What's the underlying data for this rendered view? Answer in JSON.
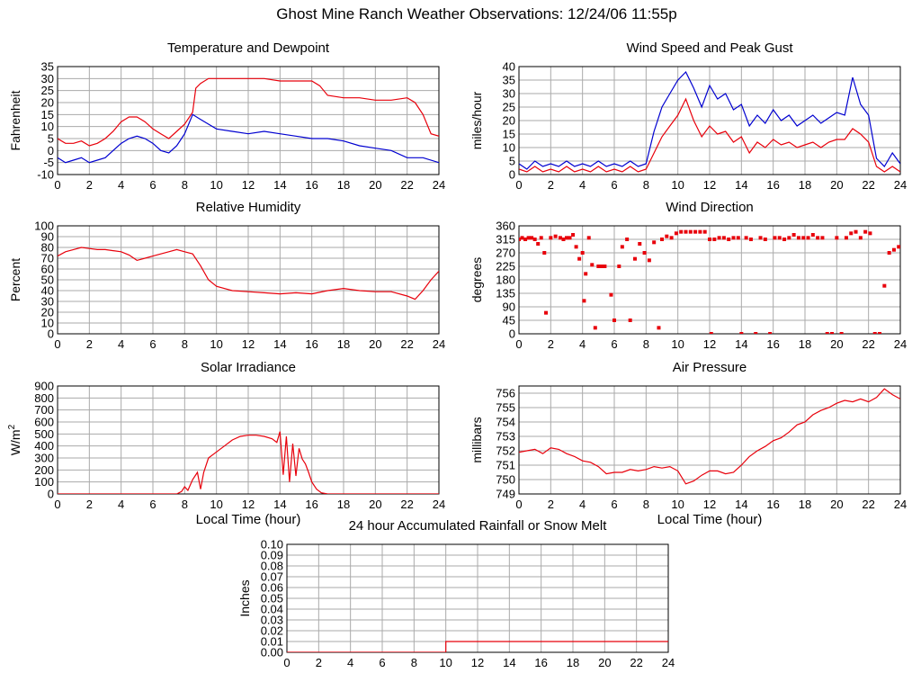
{
  "title": "Ghost Mine Ranch Weather Observations: 12/24/06 11:55p",
  "colors": {
    "series_red": "#e8000b",
    "series_blue": "#0000d0",
    "grid": "#aaaaaa",
    "major_grid": "#555555"
  },
  "chart_data": [
    {
      "id": "temp",
      "type": "line",
      "title": "Temperature and Dewpoint",
      "xlabel": "",
      "ylabel": "Fahrenheit",
      "xlim": [
        0,
        24
      ],
      "ylim": [
        -10,
        35
      ],
      "yticks": [
        -10,
        -5,
        0,
        5,
        10,
        15,
        20,
        25,
        30,
        35
      ],
      "xticks": [
        0,
        2,
        4,
        6,
        8,
        10,
        12,
        14,
        16,
        18,
        20,
        22,
        24
      ],
      "series": [
        {
          "color": "#e8000b",
          "x": [
            0,
            0.5,
            1,
            1.5,
            2,
            2.5,
            3,
            3.5,
            4,
            4.5,
            5,
            5.5,
            6,
            6.5,
            7,
            7.5,
            8,
            8.5,
            8.7,
            9,
            9.5,
            10,
            11,
            12,
            13,
            14,
            15,
            16,
            16.5,
            17,
            18,
            19,
            20,
            21,
            22,
            22.5,
            23,
            23.5,
            24
          ],
          "y": [
            5,
            3,
            3,
            4,
            2,
            3,
            5,
            8,
            12,
            14,
            14,
            12,
            9,
            7,
            5,
            8,
            11,
            16,
            26,
            28,
            30,
            30,
            30,
            30,
            30,
            29,
            29,
            29,
            27,
            23,
            22,
            22,
            21,
            21,
            22,
            20,
            15,
            7,
            6
          ]
        },
        {
          "color": "#0000d0",
          "x": [
            0,
            0.5,
            1,
            1.5,
            2,
            2.5,
            3,
            3.5,
            4,
            4.5,
            5,
            5.5,
            6,
            6.5,
            7,
            7.5,
            8,
            8.5,
            9,
            9.5,
            10,
            11,
            12,
            13,
            14,
            15,
            16,
            17,
            18,
            19,
            20,
            21,
            22,
            23,
            24
          ],
          "y": [
            -3,
            -5,
            -4,
            -3,
            -5,
            -4,
            -3,
            0,
            3,
            5,
            6,
            5,
            3,
            0,
            -1,
            2,
            7,
            15,
            13,
            11,
            9,
            8,
            7,
            8,
            7,
            6,
            5,
            5,
            4,
            2,
            1,
            0,
            -3,
            -3,
            -5
          ]
        }
      ]
    },
    {
      "id": "wind",
      "type": "line",
      "title": "Wind Speed and Peak Gust",
      "xlabel": "",
      "ylabel": "miles/hour",
      "xlim": [
        0,
        24
      ],
      "ylim": [
        0,
        40
      ],
      "yticks": [
        0,
        5,
        10,
        15,
        20,
        25,
        30,
        35,
        40
      ],
      "xticks": [
        0,
        2,
        4,
        6,
        8,
        10,
        12,
        14,
        16,
        18,
        20,
        22,
        24
      ],
      "series": [
        {
          "color": "#0000d0",
          "x": [
            0,
            0.5,
            1,
            1.5,
            2,
            2.5,
            3,
            3.5,
            4,
            4.5,
            5,
            5.5,
            6,
            6.5,
            7,
            7.5,
            8,
            8.5,
            9,
            9.5,
            10,
            10.5,
            11,
            11.5,
            12,
            12.5,
            13,
            13.5,
            14,
            14.5,
            15,
            15.5,
            16,
            16.5,
            17,
            17.5,
            18,
            18.5,
            19,
            19.5,
            20,
            20.5,
            21,
            21.5,
            22,
            22.5,
            23,
            23.5,
            24
          ],
          "y": [
            4,
            2,
            5,
            3,
            4,
            3,
            5,
            3,
            4,
            3,
            5,
            3,
            4,
            3,
            5,
            3,
            4,
            16,
            25,
            30,
            35,
            38,
            32,
            25,
            33,
            28,
            30,
            24,
            26,
            18,
            22,
            19,
            24,
            20,
            22,
            18,
            20,
            22,
            19,
            21,
            23,
            22,
            36,
            26,
            22,
            6,
            3,
            8,
            4
          ]
        },
        {
          "color": "#e8000b",
          "x": [
            0,
            0.5,
            1,
            1.5,
            2,
            2.5,
            3,
            3.5,
            4,
            4.5,
            5,
            5.5,
            6,
            6.5,
            7,
            7.5,
            8,
            8.5,
            9,
            9.5,
            10,
            10.5,
            11,
            11.5,
            12,
            12.5,
            13,
            13.5,
            14,
            14.5,
            15,
            15.5,
            16,
            16.5,
            17,
            17.5,
            18,
            18.5,
            19,
            19.5,
            20,
            20.5,
            21,
            21.5,
            22,
            22.5,
            23,
            23.5,
            24
          ],
          "y": [
            2,
            1,
            3,
            1,
            2,
            1,
            3,
            1,
            2,
            1,
            3,
            1,
            2,
            1,
            3,
            1,
            2,
            8,
            14,
            18,
            22,
            28,
            20,
            14,
            18,
            15,
            16,
            12,
            14,
            8,
            12,
            10,
            13,
            11,
            12,
            10,
            11,
            12,
            10,
            12,
            13,
            13,
            17,
            15,
            12,
            3,
            1,
            3,
            1
          ]
        }
      ]
    },
    {
      "id": "humidity",
      "type": "line",
      "title": "Relative Humidity",
      "xlabel": "",
      "ylabel": "Percent",
      "xlim": [
        0,
        24
      ],
      "ylim": [
        0,
        100
      ],
      "yticks": [
        0,
        10,
        20,
        30,
        40,
        50,
        60,
        70,
        80,
        90,
        100
      ],
      "xticks": [
        0,
        2,
        4,
        6,
        8,
        10,
        12,
        14,
        16,
        18,
        20,
        22,
        24
      ],
      "series": [
        {
          "color": "#e8000b",
          "x": [
            0,
            0.5,
            1,
            1.5,
            2,
            2.5,
            3,
            3.5,
            4,
            4.5,
            5,
            5.5,
            6,
            6.5,
            7,
            7.5,
            8,
            8.5,
            9,
            9.5,
            10,
            11,
            12,
            13,
            14,
            15,
            16,
            17,
            18,
            19,
            20,
            21,
            22,
            22.5,
            23,
            23.5,
            24
          ],
          "y": [
            72,
            76,
            78,
            80,
            79,
            78,
            78,
            77,
            76,
            73,
            68,
            70,
            72,
            74,
            76,
            78,
            76,
            74,
            63,
            50,
            44,
            40,
            39,
            38,
            37,
            38,
            37,
            40,
            42,
            40,
            39,
            39,
            35,
            32,
            40,
            50,
            58
          ]
        }
      ]
    },
    {
      "id": "direction",
      "type": "scatter",
      "title": "Wind Direction",
      "xlabel": "",
      "ylabel": "degrees",
      "xlim": [
        0,
        24
      ],
      "ylim": [
        0,
        360
      ],
      "yticks": [
        0,
        45,
        90,
        135,
        180,
        225,
        270,
        315,
        360
      ],
      "xticks": [
        0,
        2,
        4,
        6,
        8,
        10,
        12,
        14,
        16,
        18,
        20,
        22,
        24
      ],
      "series": [
        {
          "color": "#e8000b",
          "x": [
            0.0,
            0.2,
            0.4,
            0.6,
            0.8,
            1.0,
            1.2,
            1.4,
            1.6,
            1.7,
            2.0,
            2.3,
            2.6,
            2.8,
            3.0,
            3.2,
            3.4,
            3.6,
            3.8,
            4.0,
            4.1,
            4.2,
            4.4,
            4.6,
            4.8,
            5.0,
            5.2,
            5.4,
            5.8,
            6.0,
            6.3,
            6.5,
            6.8,
            7.0,
            7.3,
            7.6,
            7.9,
            8.2,
            8.5,
            8.8,
            9.0,
            9.3,
            9.6,
            9.9,
            10.2,
            10.5,
            10.8,
            11.1,
            11.4,
            11.7,
            12.0,
            12.1,
            12.3,
            12.6,
            12.9,
            13.2,
            13.5,
            13.8,
            14.0,
            14.3,
            14.6,
            14.9,
            15.2,
            15.5,
            15.8,
            16.1,
            16.4,
            16.7,
            17.0,
            17.3,
            17.6,
            17.9,
            18.2,
            18.5,
            18.8,
            19.1,
            19.4,
            19.7,
            20.0,
            20.3,
            20.6,
            20.9,
            21.2,
            21.5,
            21.8,
            22.1,
            22.4,
            22.7,
            23.0,
            23.3,
            23.6,
            23.9
          ],
          "y": [
            315,
            320,
            315,
            320,
            320,
            315,
            300,
            320,
            270,
            70,
            320,
            325,
            320,
            315,
            320,
            320,
            330,
            290,
            250,
            270,
            110,
            200,
            320,
            230,
            20,
            225,
            225,
            225,
            130,
            45,
            225,
            290,
            315,
            45,
            250,
            300,
            270,
            245,
            305,
            20,
            315,
            325,
            320,
            335,
            340,
            340,
            340,
            340,
            340,
            340,
            315,
            0,
            315,
            320,
            320,
            315,
            320,
            320,
            0,
            320,
            315,
            0,
            320,
            315,
            0,
            320,
            320,
            315,
            320,
            330,
            320,
            320,
            320,
            330,
            320,
            320,
            0,
            0,
            320,
            0,
            320,
            335,
            340,
            320,
            340,
            335,
            0,
            0,
            160,
            270,
            280,
            290
          ]
        }
      ]
    },
    {
      "id": "solar",
      "type": "line",
      "title": "Solar Irradiance",
      "xlabel": "Local Time (hour)",
      "ylabel": "W/m",
      "ylabel_sup": "2",
      "xlim": [
        0,
        24
      ],
      "ylim": [
        0,
        900
      ],
      "yticks": [
        0,
        100,
        200,
        300,
        400,
        500,
        600,
        700,
        800,
        900
      ],
      "xticks": [
        0,
        2,
        4,
        6,
        8,
        10,
        12,
        14,
        16,
        18,
        20,
        22,
        24
      ],
      "series": [
        {
          "color": "#e8000b",
          "x": [
            0,
            7.5,
            7.8,
            8.0,
            8.2,
            8.5,
            8.8,
            9.0,
            9.2,
            9.5,
            10.0,
            10.5,
            11.0,
            11.5,
            12.0,
            12.5,
            13.0,
            13.5,
            13.8,
            14.0,
            14.2,
            14.4,
            14.6,
            14.8,
            15.0,
            15.2,
            15.4,
            15.6,
            15.8,
            16.0,
            16.3,
            16.6,
            17.0,
            24
          ],
          "y": [
            0,
            0,
            20,
            60,
            30,
            120,
            180,
            40,
            180,
            300,
            350,
            400,
            450,
            480,
            490,
            490,
            480,
            460,
            430,
            520,
            160,
            480,
            100,
            420,
            150,
            380,
            290,
            250,
            180,
            100,
            40,
            10,
            0,
            0
          ]
        }
      ]
    },
    {
      "id": "pressure",
      "type": "line",
      "title": "Air Pressure",
      "xlabel": "Local Time (hour)",
      "ylabel": "millibars",
      "xlim": [
        0,
        24
      ],
      "ylim": [
        749,
        756.5
      ],
      "yticks": [
        749,
        750,
        751,
        752,
        753,
        754,
        755,
        756
      ],
      "xticks": [
        0,
        2,
        4,
        6,
        8,
        10,
        12,
        14,
        16,
        18,
        20,
        22,
        24
      ],
      "series": [
        {
          "color": "#e8000b",
          "x": [
            0,
            0.5,
            1,
            1.5,
            2,
            2.5,
            3,
            3.5,
            4,
            4.5,
            5,
            5.5,
            6,
            6.5,
            7,
            7.5,
            8,
            8.5,
            9,
            9.5,
            10,
            10.5,
            11,
            11.5,
            12,
            12.5,
            13,
            13.5,
            14,
            14.5,
            15,
            15.5,
            16,
            16.5,
            17,
            17.5,
            18,
            18.5,
            19,
            19.5,
            20,
            20.5,
            21,
            21.5,
            22,
            22.5,
            23,
            23.5,
            24
          ],
          "y": [
            751.9,
            752.0,
            752.1,
            751.8,
            752.2,
            752.1,
            751.8,
            751.6,
            751.3,
            751.2,
            750.9,
            750.4,
            750.5,
            750.5,
            750.7,
            750.6,
            750.7,
            750.9,
            750.8,
            750.9,
            750.6,
            749.7,
            749.9,
            750.3,
            750.6,
            750.6,
            750.4,
            750.5,
            751.0,
            751.6,
            752.0,
            752.3,
            752.7,
            752.9,
            753.3,
            753.8,
            754.0,
            754.5,
            754.8,
            755.0,
            755.3,
            755.5,
            755.4,
            755.6,
            755.4,
            755.7,
            756.3,
            755.9,
            755.6
          ]
        }
      ]
    },
    {
      "id": "rain",
      "type": "line",
      "title": "24 hour Accumulated Rainfall or Snow Melt",
      "xlabel": "",
      "ylabel": "Inches",
      "xlim": [
        0,
        24
      ],
      "ylim": [
        0,
        0.1
      ],
      "yticks": [
        0.0,
        0.01,
        0.02,
        0.03,
        0.04,
        0.05,
        0.06,
        0.07,
        0.08,
        0.09,
        0.1
      ],
      "ytick_labels": [
        "0.00",
        "0.01",
        "0.02",
        "0.03",
        "0.04",
        "0.05",
        "0.06",
        "0.07",
        "0.08",
        "0.09",
        "0.10"
      ],
      "xticks": [
        0,
        2,
        4,
        6,
        8,
        10,
        12,
        14,
        16,
        18,
        20,
        22,
        24
      ],
      "series": [
        {
          "color": "#e8000b",
          "x": [
            0,
            10.0,
            10.0,
            24
          ],
          "y": [
            0,
            0,
            0.01,
            0.01
          ]
        }
      ]
    }
  ]
}
